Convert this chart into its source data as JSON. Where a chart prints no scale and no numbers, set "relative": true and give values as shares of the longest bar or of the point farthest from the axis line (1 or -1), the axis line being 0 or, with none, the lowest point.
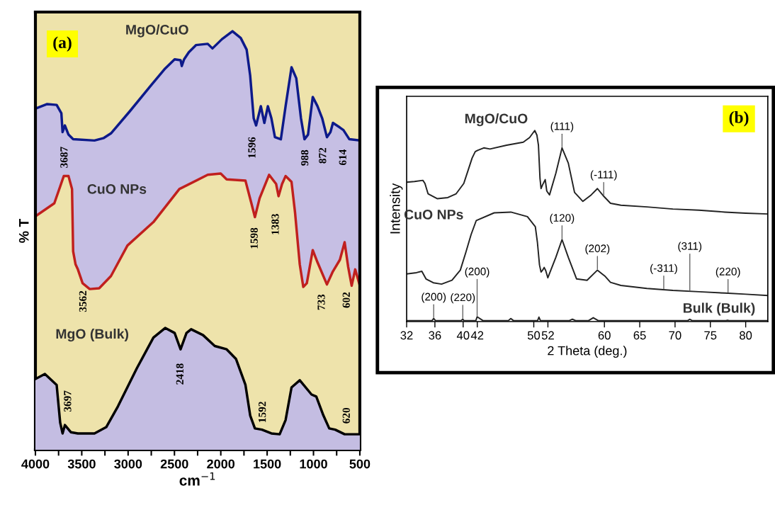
{
  "chart_data": [
    {
      "type": "area",
      "relative": true,
      "xlabel": "cm$^{−1}$",
      "ylabel": "% T",
      "tick_labels": "x",
      "grid": false,
      "legend": false,
      "xlim": [
        4000,
        500
      ],
      "xticks": [
        4000,
        {
          "value": 3750,
          "label": null
        },
        3500,
        {
          "value": 3250,
          "label": null
        },
        3000,
        {
          "value": 2750,
          "label": null
        },
        2500,
        {
          "value": 2250,
          "label": null
        },
        2000,
        {
          "value": 1750,
          "label": null
        },
        1500,
        {
          "value": 1250,
          "label": null
        },
        1000,
        {
          "value": 750,
          "label": null
        },
        500
      ],
      "annotations": [
        "(a)",
        "3687",
        "1596",
        "988",
        "872",
        "614",
        "1598",
        "1383",
        "3562",
        "733",
        "602",
        "2418",
        "3697",
        "1592",
        "620"
      ],
      "series": [
        {
          "name": "MgO/CuO",
          "color": "#0d1a8a",
          "x": [
            4000,
            3873,
            3771,
            3720,
            3707,
            3682,
            3643,
            3593,
            3363,
            3262,
            3185,
            2981,
            2752,
            2600,
            2498,
            2434,
            2421,
            2396,
            2345,
            2268,
            2141,
            2090,
            1988,
            1874,
            1785,
            1721,
            1683,
            1645,
            1619,
            1568,
            1530,
            1492,
            1454,
            1416,
            1352,
            1301,
            1237,
            1186,
            1135,
            1097,
            1059,
            1008,
            957,
            906,
            855,
            817,
            790,
            715,
            677,
            613,
            500
          ],
          "values": [
            0.815,
            0.826,
            0.824,
            0.804,
            0.759,
            0.775,
            0.753,
            0.742,
            0.739,
            0.745,
            0.756,
            0.809,
            0.871,
            0.911,
            0.933,
            0.931,
            0.917,
            0.933,
            0.95,
            0.967,
            0.97,
            0.959,
            0.981,
            1,
            0.984,
            0.956,
            0.894,
            0.792,
            0.775,
            0.821,
            0.781,
            0.821,
            0.792,
            0.747,
            0.742,
            0.821,
            0.914,
            0.888,
            0.792,
            0.742,
            0.753,
            0.843,
            0.821,
            0.792,
            0.747,
            0.759,
            0.781,
            0.77,
            0.764,
            0.742,
            0.739
          ]
        },
        {
          "name": "CuO NPs",
          "color": "#c0201e",
          "x": [
            4000,
            3796,
            3694,
            3643,
            3605,
            3593,
            3567,
            3542,
            3491,
            3414,
            3312,
            3185,
            3007,
            2727,
            2447,
            2141,
            2001,
            1937,
            1734,
            1670,
            1632,
            1581,
            1479,
            1403,
            1377,
            1339,
            1301,
            1237,
            1199,
            1161,
            1148,
            1110,
            1072,
            1008,
            957,
            855,
            791,
            715,
            664,
            626,
            588,
            550,
            500
          ],
          "values": [
            0.558,
            0.589,
            0.654,
            0.654,
            0.623,
            0.474,
            0.443,
            0.431,
            0.398,
            0.384,
            0.386,
            0.415,
            0.488,
            0.544,
            0.623,
            0.657,
            0.66,
            0.646,
            0.643,
            0.589,
            0.556,
            0.601,
            0.657,
            0.635,
            0.606,
            0.635,
            0.654,
            0.64,
            0.567,
            0.474,
            0.443,
            0.389,
            0.398,
            0.477,
            0.448,
            0.395,
            0.426,
            0.454,
            0.496,
            0.437,
            0.392,
            0.431,
            0.392
          ]
        },
        {
          "name": "MgO (Bulk)",
          "color": "#000000",
          "x": [
            4000,
            3898,
            3771,
            3733,
            3707,
            3682,
            3618,
            3542,
            3363,
            3236,
            3109,
            2905,
            2727,
            2600,
            2498,
            2434,
            2370,
            2320,
            2192,
            2065,
            1937,
            1836,
            1734,
            1683,
            1632,
            1556,
            1454,
            1365,
            1301,
            1237,
            1148,
            1021,
            970,
            893,
            830,
            766,
            664,
            500
          ],
          "values": [
            0.169,
            0.181,
            0.155,
            0.065,
            0.039,
            0.059,
            0.042,
            0.039,
            0.039,
            0.054,
            0.104,
            0.195,
            0.268,
            0.291,
            0.279,
            0.24,
            0.279,
            0.288,
            0.274,
            0.248,
            0.24,
            0.217,
            0.155,
            0.082,
            0.051,
            0.048,
            0.039,
            0.037,
            0.071,
            0.149,
            0.166,
            0.132,
            0.127,
            0.082,
            0.051,
            0.048,
            0.037,
            0.037
          ]
        }
      ]
    },
    {
      "type": "line",
      "relative": true,
      "xlabel": "2 Theta (deg.)",
      "ylabel": "Intensity",
      "tick_labels": "x",
      "grid": false,
      "legend": false,
      "xlim": [
        32,
        83.13
      ],
      "xticks": [
        32,
        36,
        40,
        42,
        50,
        52,
        60,
        65,
        70,
        75,
        80
      ],
      "annotations": [
        "(b)",
        {
          "text": "(111)",
          "x": 54.0,
          "y": 0.909
        },
        {
          "text": "(-111)",
          "x": 59.9,
          "y": 0.656
        },
        {
          "text": "(120)",
          "x": 54.0,
          "y": 0.429
        },
        {
          "text": "(202)",
          "x": 59.01,
          "y": 0.269
        },
        {
          "text": "(-311)",
          "x": 68.4,
          "y": 0.166
        },
        {
          "text": "(311)",
          "x": 72.09,
          "y": 0.158
        },
        {
          "text": "(220)",
          "x": 77.5,
          "y": 0.148
        },
        {
          "text": "(200)",
          "x": 35.83,
          "y": 0.016
        },
        {
          "text": "(220)",
          "x": 39.95,
          "y": 0.013
        },
        {
          "text": "(200)",
          "x": 41.98,
          "y": 0.025
        }
      ],
      "series": [
        {
          "name": "MgO/CuO",
          "color": "#222222",
          "x": [
            32,
            33.12,
            34.3,
            34.59,
            35.03,
            36.36,
            37.83,
            39.01,
            40.09,
            40.68,
            41.27,
            41.71,
            42.03,
            42.92,
            43.8,
            46.16,
            48.51,
            49.4,
            50.14,
            50.44,
            50.66,
            50.88,
            51.03,
            51.25,
            51.62,
            51.84,
            52.23,
            53.12,
            54.0,
            54.89,
            55.77,
            56.95,
            58.13,
            59.01,
            59.9,
            60.86,
            62.33,
            66.01,
            69.69,
            73.38,
            77.06,
            80,
            83.13
          ],
          "values": [
            0.729,
            0.733,
            0.739,
            0.723,
            0.669,
            0.643,
            0.649,
            0.669,
            0.723,
            0.789,
            0.856,
            0.889,
            0.896,
            0.909,
            0.903,
            0.923,
            0.939,
            0.963,
            1.0,
            0.976,
            0.923,
            0.749,
            0.696,
            0.716,
            0.743,
            0.683,
            0.663,
            0.776,
            0.909,
            0.829,
            0.676,
            0.629,
            0.663,
            0.696,
            0.656,
            0.619,
            0.609,
            0.6,
            0.589,
            0.583,
            0.573,
            0.567,
            0.563
          ]
        },
        {
          "name": "CuO NPs",
          "color": "#222222",
          "x": [
            32,
            33.41,
            34.15,
            34.74,
            35.77,
            36.95,
            38.42,
            39.6,
            40.39,
            41.13,
            41.86,
            44.39,
            46.75,
            49.1,
            50.22,
            50.51,
            50.81,
            51.03,
            51.25,
            51.47,
            51.69,
            51.99,
            53.12,
            54.0,
            54.89,
            56.06,
            57.54,
            59.01,
            60.12,
            60.86,
            62.33,
            66.01,
            69.69,
            73.38,
            77.06,
            80,
            83.13
          ],
          "values": [
            0.249,
            0.256,
            0.263,
            0.223,
            0.203,
            0.196,
            0.216,
            0.269,
            0.363,
            0.456,
            0.529,
            0.569,
            0.573,
            0.549,
            0.496,
            0.416,
            0.296,
            0.259,
            0.269,
            0.283,
            0.267,
            0.229,
            0.336,
            0.429,
            0.336,
            0.223,
            0.216,
            0.269,
            0.236,
            0.205,
            0.189,
            0.173,
            0.163,
            0.156,
            0.149,
            0.143,
            0.136
          ]
        },
        {
          "name": "Bulk (Bulk)",
          "color": "#222222",
          "x": [
            32,
            35.6,
            35.83,
            36.08,
            39.72,
            39.95,
            40.1,
            41.8,
            41.98,
            42.8,
            46.4,
            46.75,
            47.12,
            50.54,
            50.73,
            50.94,
            55.04,
            55.47,
            55.92,
            57.76,
            58.42,
            59.12,
            71.8,
            72.09,
            72.4,
            77.2,
            77.43,
            77.65,
            83.13
          ],
          "values": [
            0.005,
            0.005,
            0.016,
            0.005,
            0.005,
            0.013,
            0.005,
            0.005,
            0.025,
            0.005,
            0.005,
            0.016,
            0.005,
            0.005,
            0.023,
            0.005,
            0.005,
            0.012,
            0.005,
            0.005,
            0.02,
            0.005,
            0.005,
            0.012,
            0.005,
            0.005,
            0.007,
            0.005,
            0.005
          ]
        }
      ]
    }
  ]
}
